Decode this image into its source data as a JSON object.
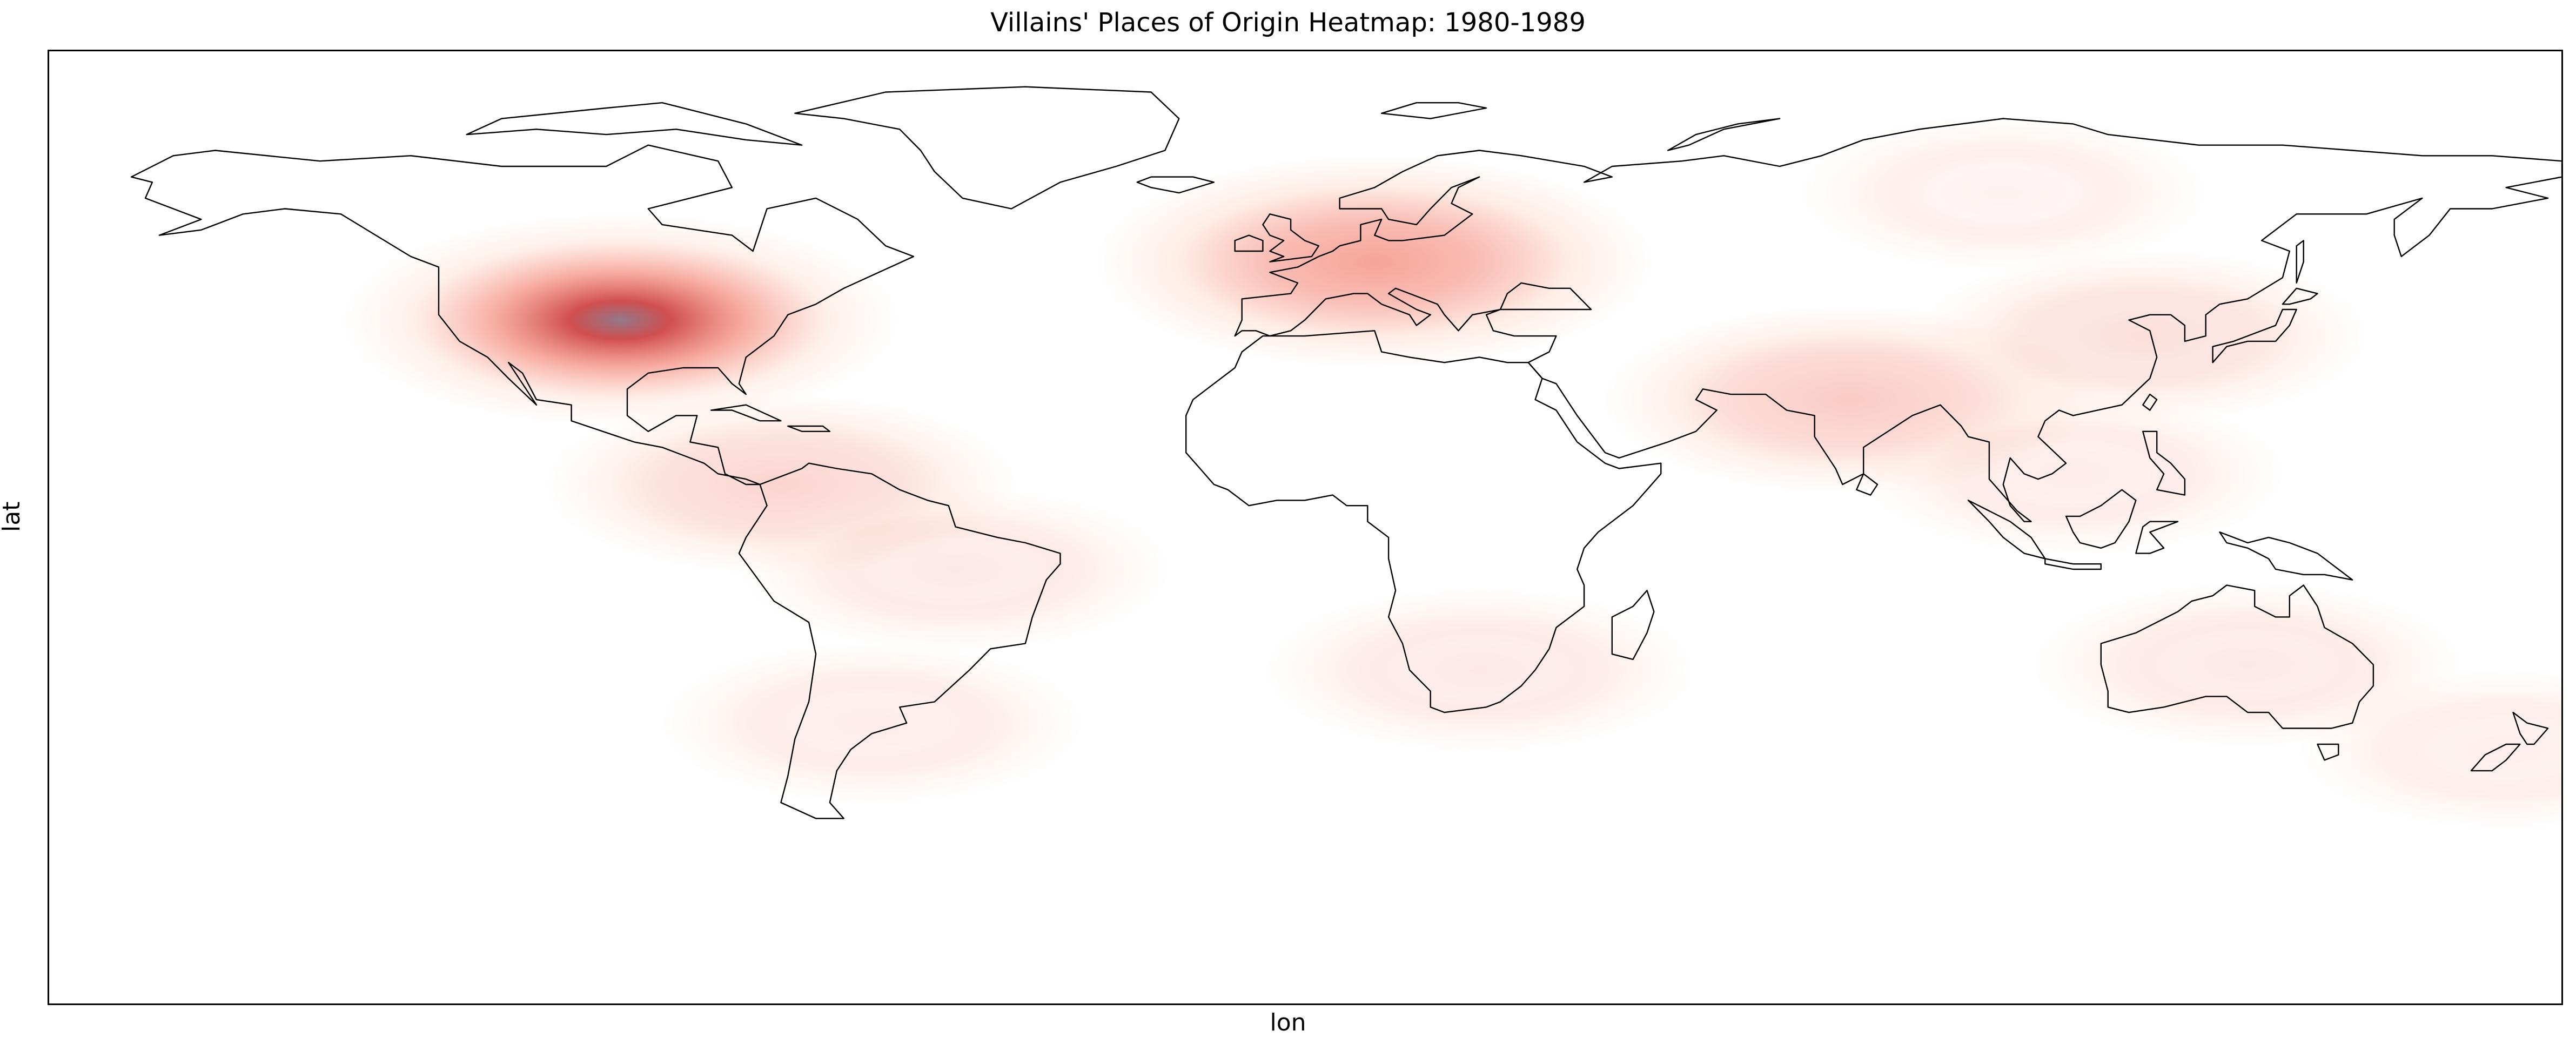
{
  "chart_data": {
    "type": "heatmap",
    "title": "Villains' Places of Origin Heatmap: 1980-1989",
    "xlabel": "lon",
    "ylabel": "lat",
    "xlim": [
      -180,
      180
    ],
    "ylim": [
      -90,
      90
    ],
    "grid": false,
    "legend": "none",
    "colormap": "Reds",
    "basemap": "world country borders",
    "hotspots": [
      {
        "region": "United States",
        "lon": -98,
        "lat": 39,
        "intensity": 1.0
      },
      {
        "region": "Central Europe",
        "lon": 10,
        "lat": 50,
        "intensity": 0.55
      },
      {
        "region": "South Asia",
        "lon": 78,
        "lat": 24,
        "intensity": 0.32
      },
      {
        "region": "Northern South America",
        "lon": -75,
        "lat": 8,
        "intensity": 0.26
      },
      {
        "region": "East Asia",
        "lon": 120,
        "lat": 36,
        "intensity": 0.2
      },
      {
        "region": "Brazil",
        "lon": -50,
        "lat": -8,
        "intensity": 0.14
      },
      {
        "region": "Southern Africa",
        "lon": 25,
        "lat": -27,
        "intensity": 0.14
      },
      {
        "region": "Australia",
        "lon": 135,
        "lat": -26,
        "intensity": 0.14
      },
      {
        "region": "Southeast Asia",
        "lon": 110,
        "lat": 10,
        "intensity": 0.12
      },
      {
        "region": "Argentina / Chile",
        "lon": -62,
        "lat": -37,
        "intensity": 0.12
      },
      {
        "region": "New Zealand",
        "lon": 172,
        "lat": -42,
        "intensity": 0.1
      },
      {
        "region": "Siberia",
        "lon": 100,
        "lat": 63,
        "intensity": 0.08
      }
    ]
  },
  "colors": {
    "heat_low": "#fee5d9",
    "heat_mid": "#f4897a",
    "heat_high": "#cb3b3b",
    "heat_core": "#8c7284",
    "coastline": "#000000",
    "background": "#ffffff"
  }
}
